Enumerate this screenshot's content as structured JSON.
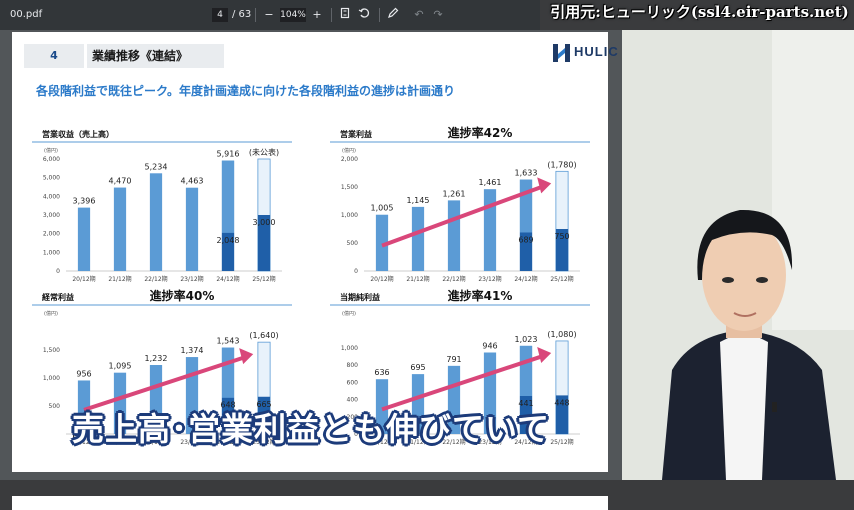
{
  "toolbar": {
    "filename": "00.pdf",
    "page_current": "4",
    "page_sep": "/ 63",
    "zoom": "104%",
    "zoom_out": "−",
    "zoom_in": "+",
    "undo": "↶",
    "redo": "↷"
  },
  "credit": "引用元:ヒューリック(ssl4.eir-parts.net)",
  "slide": {
    "number": "4",
    "title": "業績推移《連結》",
    "logo": "HULIC",
    "subtitle": "各段階利益で既往ピーク。年度計画達成に向けた各段階利益の進捗は計画通り"
  },
  "caption": "売上高･営業利益とも伸びていて",
  "chart_data": [
    {
      "type": "bar",
      "title": "営業収益（売上高）",
      "progress": "",
      "unit": "(億円)",
      "categories": [
        "20/12期",
        "21/12期",
        "22/12期",
        "23/12期",
        "24/12期",
        "25/12期"
      ],
      "values": [
        3396,
        4470,
        5234,
        4463,
        5916,
        null
      ],
      "labels": [
        "3,396",
        "4,470",
        "5,234",
        "4,463",
        "5,916",
        "(未公表)"
      ],
      "interim": [
        null,
        null,
        null,
        null,
        2048,
        3000
      ],
      "interim_labels": [
        "",
        "",
        "",
        "",
        "2,048",
        "3,000"
      ],
      "plan": [
        null,
        null,
        null,
        null,
        null,
        6000
      ],
      "ylim": [
        0,
        6000
      ],
      "yticks": [
        0,
        1000,
        2000,
        3000,
        4000,
        5000,
        6000
      ],
      "ytick_labels": [
        "0",
        "1,000",
        "2,000",
        "3,000",
        "4,000",
        "5,000",
        "6,000"
      ],
      "arrow": false
    },
    {
      "type": "bar",
      "title": "営業利益",
      "progress": "進捗率42%",
      "unit": "(億円)",
      "categories": [
        "20/12期",
        "21/12期",
        "22/12期",
        "23/12期",
        "24/12期",
        "25/12期"
      ],
      "values": [
        1005,
        1145,
        1261,
        1461,
        1633,
        null
      ],
      "labels": [
        "1,005",
        "1,145",
        "1,261",
        "1,461",
        "1,633",
        "(1,780)"
      ],
      "interim": [
        null,
        null,
        null,
        null,
        689,
        750
      ],
      "interim_labels": [
        "",
        "",
        "",
        "",
        "689",
        "750"
      ],
      "plan": [
        null,
        null,
        null,
        null,
        null,
        1780
      ],
      "ylim": [
        0,
        2000
      ],
      "yticks": [
        0,
        500,
        1000,
        1500,
        2000
      ],
      "ytick_labels": [
        "0",
        "500",
        "1,000",
        "1,500",
        "2,000"
      ],
      "arrow": true
    },
    {
      "type": "bar",
      "title": "経常利益",
      "progress": "進捗率40%",
      "unit": "(億円)",
      "categories": [
        "20/12期",
        "21/12期",
        "22/12期",
        "23/12期",
        "24/12期",
        "25/12期"
      ],
      "values": [
        956,
        1095,
        1232,
        1374,
        1543,
        null
      ],
      "labels": [
        "956",
        "1,095",
        "1,232",
        "1,374",
        "1,543",
        "(1,640)"
      ],
      "interim": [
        null,
        null,
        null,
        null,
        648,
        665
      ],
      "interim_labels": [
        "",
        "",
        "",
        "",
        "648",
        "665"
      ],
      "plan": [
        null,
        null,
        null,
        null,
        null,
        1640
      ],
      "ylim": [
        0,
        2000
      ],
      "yticks": [
        500,
        1000,
        1500
      ],
      "ytick_labels": [
        "500",
        "1,000",
        "1,500"
      ],
      "arrow": true
    },
    {
      "type": "bar",
      "title": "当期純利益",
      "progress": "進捗率41%",
      "unit": "(億円)",
      "categories": [
        "20/12期",
        "21/12期",
        "22/12期",
        "23/12期",
        "24/12期",
        "25/12期"
      ],
      "values": [
        636,
        695,
        791,
        946,
        1023,
        null
      ],
      "labels": [
        "636",
        "695",
        "791",
        "946",
        "1,023",
        "(1,080)"
      ],
      "interim": [
        null,
        null,
        null,
        null,
        441,
        448
      ],
      "interim_labels": [
        "",
        "",
        "",
        "",
        "441",
        "448"
      ],
      "plan": [
        null,
        null,
        null,
        null,
        null,
        1080
      ],
      "ylim": [
        0,
        1300
      ],
      "yticks": [
        0,
        200,
        400,
        600,
        800,
        1000
      ],
      "ytick_labels": [
        "0",
        "200",
        "400",
        "600",
        "800",
        "1,000"
      ],
      "arrow": true
    }
  ]
}
